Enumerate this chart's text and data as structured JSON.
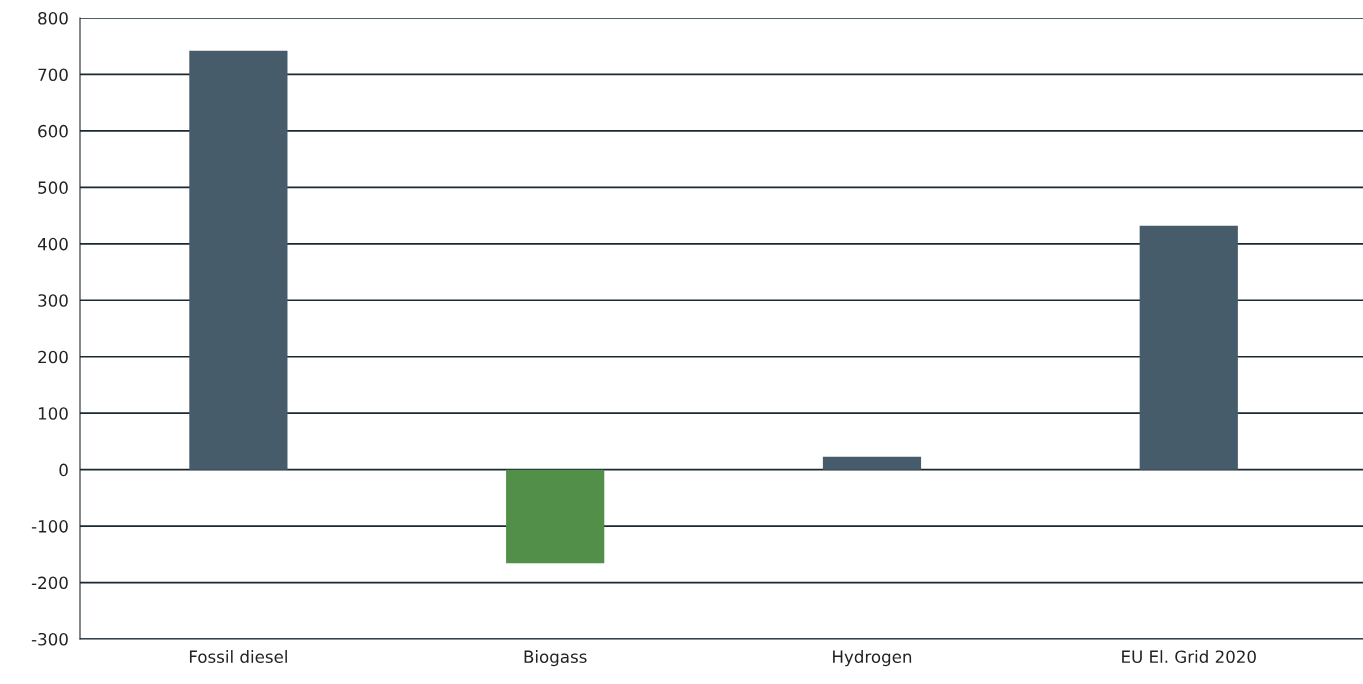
{
  "chart_data": {
    "type": "bar",
    "categories": [
      "Fossil diesel",
      "Biogass",
      "Hydrogen",
      "EU El. Grid 2020"
    ],
    "values": [
      742,
      -166,
      23,
      432
    ],
    "colors": [
      "#475c6b",
      "#528f48",
      "#475c6b",
      "#475c6b"
    ],
    "ylim": [
      -300,
      800
    ],
    "yticks": [
      {
        "value": -300,
        "label": "-300"
      },
      {
        "value": -200,
        "label": "-200"
      },
      {
        "value": -100,
        "label": "-100"
      },
      0,
      100,
      200,
      300,
      400,
      500,
      600,
      700,
      800
    ],
    "grid": "y",
    "legend": false
  }
}
